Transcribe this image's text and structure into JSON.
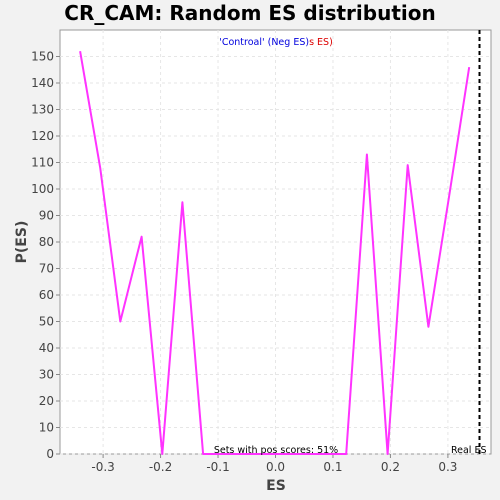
{
  "chart_data": {
    "type": "line",
    "title": "CR_CAM: Random ES distribution",
    "xlabel": "ES",
    "ylabel": "P(ES)",
    "xlim": [
      -0.375,
      0.375
    ],
    "ylim": [
      0,
      160
    ],
    "xticks": [
      -0.3,
      -0.2,
      -0.1,
      0.0,
      0.1,
      0.2,
      0.3
    ],
    "xtick_labels": [
      "-0.3",
      "-0.2",
      "-0.1",
      "0.0",
      "0.1",
      "0.2",
      "0.3"
    ],
    "yticks": [
      0,
      10,
      20,
      30,
      40,
      50,
      60,
      70,
      80,
      90,
      100,
      110,
      120,
      130,
      140,
      150
    ],
    "grid": true,
    "series": [
      {
        "color": "#ff33ff",
        "x": [
          -0.34,
          -0.305,
          -0.27,
          -0.233,
          -0.197,
          -0.162,
          -0.126,
          -0.09,
          -0.055,
          -0.019,
          0.016,
          0.052,
          0.088,
          0.123,
          0.159,
          0.195,
          0.23,
          0.266,
          0.302,
          0.337
        ],
        "y": [
          152,
          108,
          50,
          82,
          0,
          95,
          0,
          0,
          0,
          0,
          0,
          0,
          0,
          0,
          113,
          0,
          109,
          48,
          97,
          146
        ]
      }
    ],
    "real_es": {
      "x": 0.355,
      "label": "Real ES",
      "color": "#000000"
    },
    "legend": {
      "part1": "'Controal' (Neg ES)",
      "part1_color": "#0000dd",
      "part2": "s ES)",
      "part2_color": "#dd0000"
    },
    "annotation": "Sets with pos scores: 51%"
  }
}
